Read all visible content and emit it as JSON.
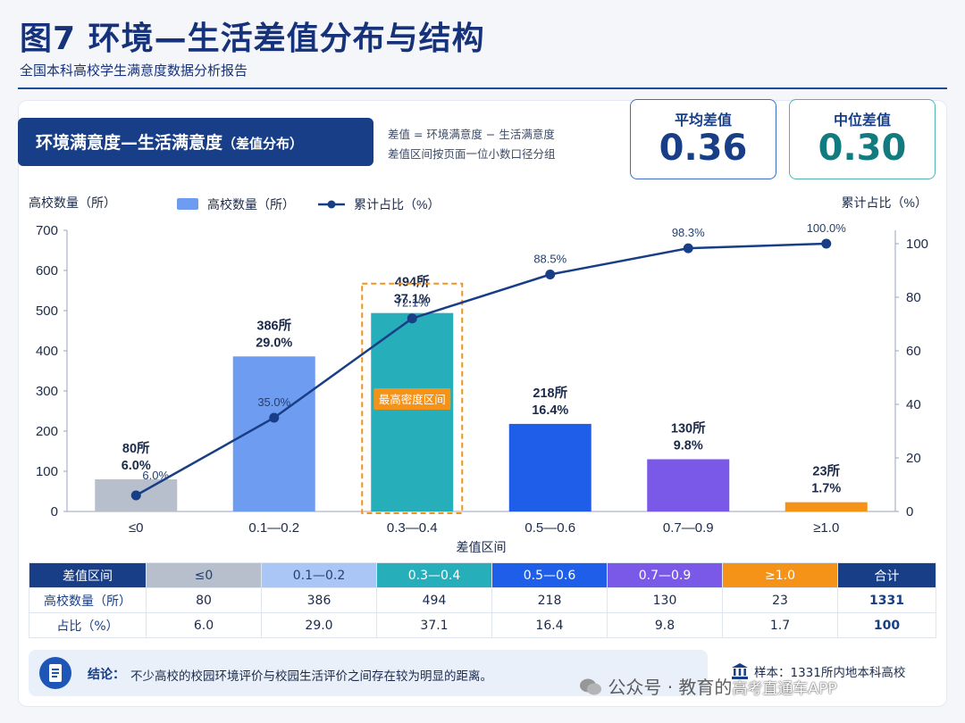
{
  "header": {
    "title": "图7 环境—生活差值分布与结构",
    "subtitle": "全国本科高校学生满意度数据分析报告"
  },
  "section": {
    "title": "环境满意度—生活满意度",
    "title_suffix": "（差值分布）",
    "note_line1": "差值 = 环境满意度 − 生活满意度",
    "note_line2": "差值区间按页面一位小数口径分组"
  },
  "kpis": {
    "mean_label": "平均差值",
    "mean_value": "0.36",
    "median_label": "中位差值",
    "median_value": "0.30"
  },
  "chart_data": {
    "type": "bar",
    "categories": [
      "≤0",
      "0.1—0.2",
      "0.3—0.4",
      "0.5—0.6",
      "0.7—0.9",
      "≥1.0"
    ],
    "series": [
      {
        "name": "高校数量（所）",
        "values": [
          80,
          386,
          494,
          218,
          130,
          23
        ]
      },
      {
        "name": "累计占比（%）",
        "type": "line",
        "values": [
          6.0,
          35.0,
          72.1,
          88.5,
          98.3,
          100.0
        ]
      }
    ],
    "bar_labels_count": [
      "80所",
      "386所",
      "494所",
      "218所",
      "130所",
      "23所"
    ],
    "bar_labels_pct": [
      "6.0%",
      "29.0%",
      "37.1%",
      "16.4%",
      "9.8%",
      "1.7%"
    ],
    "line_labels": [
      "6.0%",
      "35.0%",
      "72.1%",
      "88.5%",
      "98.3%",
      "100.0%"
    ],
    "bar_colors": [
      "#b7bfcc",
      "#6e9cf0",
      "#27aebb",
      "#1f5ee8",
      "#7b59e8",
      "#f59218"
    ],
    "line_color": "#173e86",
    "highlight_index": 2,
    "highlight_label": "最高密度区间",
    "xlabel": "差值区间",
    "ylabel": "高校数量（所）",
    "y2label": "累计占比（%）",
    "ylim": [
      0,
      700
    ],
    "yticks": [
      0,
      100,
      200,
      300,
      400,
      500,
      600,
      700
    ],
    "y2lim": [
      0,
      105
    ],
    "y2ticks": [
      0,
      20,
      40,
      60,
      80,
      100
    ],
    "legend_position": "top"
  },
  "table": {
    "headers": [
      "差值区间",
      "≤0",
      "0.1—0.2",
      "0.3—0.4",
      "0.5—0.6",
      "0.7—0.9",
      "≥1.0",
      "合计"
    ],
    "header_colors": [
      "#173e86",
      "#b7bfcc",
      "#a9c6f7",
      "#27aebb",
      "#1f5ee8",
      "#7b59e8",
      "#f59218",
      "#173e86"
    ],
    "rows": [
      {
        "label": "高校数量（所）",
        "cells": [
          "80",
          "386",
          "494",
          "218",
          "130",
          "23"
        ],
        "total": "1331"
      },
      {
        "label": "占比（%）",
        "cells": [
          "6.0",
          "29.0",
          "37.1",
          "16.4",
          "9.8",
          "1.7"
        ],
        "total": "100"
      }
    ]
  },
  "conclusion": {
    "label": "结论：",
    "text": "不少高校的校园环境评价与校园生活评价之间存在较为明显的距离。"
  },
  "sample": {
    "text": "样本：1331所内地本科高校"
  },
  "watermark": {
    "text": "公众号 · 教育的",
    "app": "高考直通车APP"
  },
  "icons": [
    "document-icon",
    "bank-icon",
    "wechat-icon"
  ]
}
